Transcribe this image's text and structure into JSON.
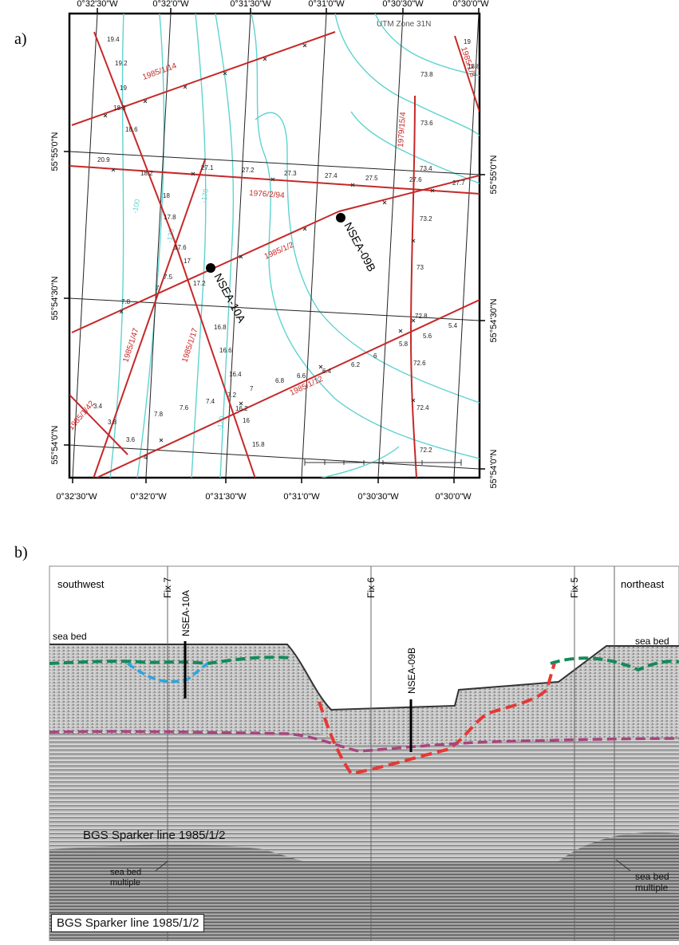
{
  "panel_a": {
    "label": "a)",
    "utm_zone": "UTM Zone 31N",
    "top_lon_ticks": [
      "0°32'30\"W",
      "0°32'0\"W",
      "0°31'30\"W",
      "0°31'0\"W",
      "0°30'30\"W",
      "0°30'0\"W"
    ],
    "bottom_lon_ticks": [
      "0°32'30\"W",
      "0°32'0\"W",
      "0°31'30\"W",
      "0°31'0\"W",
      "0°30'30\"W",
      "0°30'0\"W"
    ],
    "left_lat_ticks": [
      "55°55'0\"N",
      "55°54'30\"N",
      "55°54'0\"N"
    ],
    "right_lat_ticks": [
      "55°55'0\"N",
      "55°54'30\"N",
      "55°54'0\"N"
    ],
    "survey_lines": [
      "1985/1/14",
      "1976/2/94",
      "1985/1/2",
      "1985/1/12",
      "1985/1/47",
      "1985/1/17",
      "1979/15/4",
      "1985/1/8",
      "1985/1/42"
    ],
    "core_sites": [
      "NSEA-09B",
      "NSEA-10A"
    ],
    "contour_labels": [
      "-100",
      "-130",
      "-170",
      "-120"
    ],
    "fix_numbers": [
      "19.4",
      "19.2",
      "19",
      "18.8",
      "18.6",
      "20.9",
      "18.2",
      "18",
      "17.8",
      "17.6",
      "17.2",
      "17",
      "7.8",
      "7.5",
      "7",
      "3.4",
      "3.8",
      "3.6",
      "4",
      "7.8",
      "7.6",
      "7.4",
      "7.2",
      "7",
      "6.8",
      "6.6",
      "6.4",
      "6.2",
      "6",
      "5.8",
      "5.6",
      "5.4",
      "27.1",
      "27.2",
      "27.3",
      "27.4",
      "27.5",
      "27.6",
      "27.7",
      "73.8",
      "73.6",
      "73.4",
      "73.2",
      "73",
      "72.8",
      "72.6",
      "72.4",
      "72.2",
      "16.8",
      "16.6",
      "16.4",
      "16.2",
      "16",
      "15.8",
      "19",
      "18.8"
    ]
  },
  "panel_b": {
    "label": "b)",
    "southwest": "southwest",
    "northeast": "northeast",
    "fix7": "Fix 7",
    "fix6": "Fix 6",
    "fix5": "Fix 5",
    "core_10a": "NSEA-10A",
    "core_09b": "NSEA-09B",
    "sea_bed_left": "sea bed",
    "sea_bed_right": "sea bed",
    "line_label": "BGS Sparker line 1985/1/2",
    "multiple_left_1": "sea bed",
    "multiple_left_2": "multiple",
    "multiple_right_1": "sea bed",
    "multiple_right_2": "multiple",
    "caption_box": "BGS Sparker line 1985/1/2"
  },
  "colors": {
    "survey_red": "#c62828",
    "contour_cyan": "#5fd3d0",
    "green_dash": "#138a5a",
    "blue_dash": "#2aa6e0",
    "red_dash": "#e53935",
    "purple_dash": "#a8457e"
  }
}
